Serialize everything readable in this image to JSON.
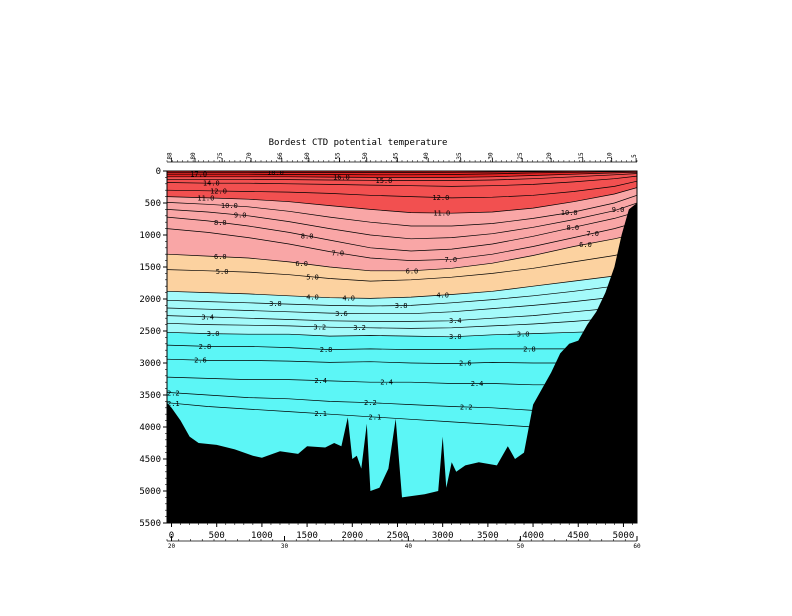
{
  "chart_data": {
    "type": "heatmap",
    "title": "Bordest CTD potential temperature",
    "xlim": [
      -50,
      5150
    ],
    "ylim": [
      5500,
      0
    ],
    "x_ticks": [
      0,
      500,
      1000,
      1500,
      2000,
      2500,
      3000,
      3500,
      4000,
      4500,
      5000
    ],
    "y_ticks": [
      0,
      500,
      1000,
      1500,
      2000,
      2500,
      3000,
      3500,
      4000,
      4500,
      5000,
      5500
    ],
    "lat_ticks": [
      {
        "x": 0,
        "label": "20"
      },
      {
        "x": 1250,
        "label": "30"
      },
      {
        "x": 2620,
        "label": "40"
      },
      {
        "x": 3860,
        "label": "50"
      },
      {
        "x": 5150,
        "label": "60"
      }
    ],
    "stations": [
      {
        "x": 0,
        "label": "88"
      },
      {
        "x": 260,
        "label": "80"
      },
      {
        "x": 560,
        "label": "75"
      },
      {
        "x": 880,
        "label": "70"
      },
      {
        "x": 1220,
        "label": "66"
      },
      {
        "x": 1520,
        "label": "60"
      },
      {
        "x": 1860,
        "label": "55"
      },
      {
        "x": 2160,
        "label": "50"
      },
      {
        "x": 2500,
        "label": "45"
      },
      {
        "x": 2840,
        "label": "40"
      },
      {
        "x": 3200,
        "label": "35"
      },
      {
        "x": 3550,
        "label": "30"
      },
      {
        "x": 3880,
        "label": "25"
      },
      {
        "x": 4200,
        "label": "20"
      },
      {
        "x": 4550,
        "label": "15"
      },
      {
        "x": 4870,
        "label": "10"
      },
      {
        "x": 5140,
        "label": "5"
      }
    ],
    "color_bands": [
      {
        "min": 11.0,
        "color": "#f25050"
      },
      {
        "min": 6.0,
        "color": "#f9a6a6"
      },
      {
        "min": 4.0,
        "color": "#fcd2a0"
      },
      {
        "min": 3.0,
        "color": "#a4fafa"
      },
      {
        "min": 0.0,
        "color": "#5cf6f6"
      }
    ],
    "surface_color": "#e52222",
    "bottom_color": "#000000",
    "contour_levels": [
      {
        "value": 2.1,
        "depth": [
          3620,
          3680,
          3720,
          3760,
          3800,
          3840,
          3880,
          3920,
          3960,
          4000,
          4030,
          4060,
          4050
        ],
        "labels": [
          {
            "x": 20,
            "text": "2.1"
          },
          {
            "x": 1650,
            "text": "2.1"
          },
          {
            "x": 2250,
            "text": "2.1"
          }
        ]
      },
      {
        "value": 2.2,
        "depth": [
          3460,
          3500,
          3540,
          3560,
          3600,
          3620,
          3650,
          3680,
          3700,
          3740,
          3780,
          3800,
          3790
        ],
        "labels": [
          {
            "x": 20,
            "text": "2.2"
          },
          {
            "x": 2200,
            "text": "2.2"
          },
          {
            "x": 3260,
            "text": "2.2"
          }
        ]
      },
      {
        "value": 2.4,
        "depth": [
          3220,
          3240,
          3260,
          3260,
          3280,
          3300,
          3300,
          3320,
          3320,
          3340,
          3340,
          3320,
          3300
        ],
        "labels": [
          {
            "x": -20,
            "text": "2.4"
          },
          {
            "x": 1650,
            "text": "2.4"
          },
          {
            "x": 2380,
            "text": "2.4"
          },
          {
            "x": 3380,
            "text": "2.4"
          }
        ]
      },
      {
        "value": 2.6,
        "depth": [
          2940,
          2960,
          2960,
          2970,
          2990,
          2980,
          3000,
          3010,
          2990,
          3000,
          3000,
          2980,
          2950
        ],
        "labels": [
          {
            "x": 320,
            "text": "2.6"
          },
          {
            "x": 3250,
            "text": "2.6"
          }
        ]
      },
      {
        "value": 2.8,
        "depth": [
          2720,
          2740,
          2740,
          2760,
          2790,
          2780,
          2790,
          2790,
          2780,
          2780,
          2780,
          2760,
          2740
        ],
        "labels": [
          {
            "x": 370,
            "text": "2.8"
          },
          {
            "x": 1710,
            "text": "2.8"
          },
          {
            "x": 3960,
            "text": "2.8"
          }
        ]
      },
      {
        "value": 3.0,
        "depth": [
          2520,
          2540,
          2550,
          2550,
          2580,
          2570,
          2580,
          2590,
          2560,
          2540,
          2520,
          2500,
          2470
        ],
        "labels": [
          {
            "x": 460,
            "text": "3.0"
          },
          {
            "x": 3140,
            "text": "3.0"
          },
          {
            "x": 3890,
            "text": "3.0"
          }
        ]
      },
      {
        "value": 3.2,
        "depth": [
          2380,
          2400,
          2410,
          2420,
          2440,
          2450,
          2460,
          2450,
          2420,
          2390,
          2350,
          2300,
          2250
        ],
        "labels": [
          {
            "x": 1640,
            "text": "3.2"
          },
          {
            "x": 2080,
            "text": "3.2"
          }
        ]
      },
      {
        "value": 3.4,
        "depth": [
          2260,
          2280,
          2300,
          2320,
          2340,
          2350,
          2350,
          2340,
          2300,
          2260,
          2200,
          2140,
          2080
        ],
        "labels": [
          {
            "x": 400,
            "text": "3.4"
          },
          {
            "x": 3140,
            "text": "3.4"
          }
        ]
      },
      {
        "value": 3.6,
        "depth": [
          2140,
          2160,
          2180,
          2200,
          2220,
          2230,
          2230,
          2200,
          2150,
          2100,
          2040,
          1970,
          1900
        ],
        "labels": [
          {
            "x": 1880,
            "text": "3.6"
          }
        ]
      },
      {
        "value": 3.8,
        "depth": [
          2020,
          2040,
          2060,
          2080,
          2100,
          2110,
          2100,
          2060,
          2010,
          1950,
          1880,
          1800,
          1720
        ],
        "labels": [
          {
            "x": 1150,
            "text": "3.8"
          },
          {
            "x": 2540,
            "text": "3.8"
          }
        ]
      },
      {
        "value": 4.0,
        "depth": [
          1880,
          1900,
          1920,
          1950,
          1980,
          1990,
          1970,
          1930,
          1880,
          1800,
          1720,
          1640,
          1560
        ],
        "labels": [
          {
            "x": 1560,
            "text": "4.0"
          },
          {
            "x": 1960,
            "text": "4.0"
          },
          {
            "x": 3000,
            "text": "4.0"
          }
        ]
      },
      {
        "value": 5.0,
        "depth": [
          1540,
          1560,
          1580,
          1620,
          1680,
          1720,
          1700,
          1660,
          1600,
          1520,
          1420,
          1320,
          1240
        ],
        "labels": [
          {
            "x": 560,
            "text": "5.0"
          },
          {
            "x": 1560,
            "text": "5.0"
          }
        ]
      },
      {
        "value": 6.0,
        "depth": [
          1300,
          1330,
          1360,
          1420,
          1500,
          1560,
          1560,
          1520,
          1440,
          1320,
          1180,
          1060,
          980
        ],
        "labels": [
          {
            "x": 540,
            "text": "6.0"
          },
          {
            "x": 1440,
            "text": "6.0"
          },
          {
            "x": 2660,
            "text": "6.0"
          },
          {
            "x": 4580,
            "text": "6.0"
          }
        ]
      },
      {
        "value": 7.0,
        "depth": [
          900,
          960,
          1040,
          1140,
          1260,
          1360,
          1400,
          1380,
          1300,
          1180,
          1040,
          900,
          800
        ],
        "labels": [
          {
            "x": -20,
            "text": "7.0"
          },
          {
            "x": 1840,
            "text": "7.0"
          },
          {
            "x": 3090,
            "text": "7.0"
          },
          {
            "x": 4660,
            "text": "7.0"
          }
        ]
      },
      {
        "value": 8.0,
        "depth": [
          720,
          780,
          860,
          960,
          1080,
          1200,
          1250,
          1220,
          1140,
          1020,
          880,
          740,
          640
        ],
        "labels": [
          {
            "x": 540,
            "text": "8.0"
          },
          {
            "x": 1500,
            "text": "8.0"
          },
          {
            "x": 4440,
            "text": "8.0"
          }
        ]
      },
      {
        "value": 9.0,
        "depth": [
          600,
          640,
          700,
          790,
          900,
          1000,
          1060,
          1040,
          980,
          880,
          760,
          620,
          500
        ],
        "labels": [
          {
            "x": 760,
            "text": "9.0"
          },
          {
            "x": 4940,
            "text": "9.0"
          }
        ]
      },
      {
        "value": 10.0,
        "depth": [
          490,
          520,
          560,
          630,
          720,
          800,
          860,
          860,
          820,
          740,
          640,
          500,
          380
        ],
        "labels": [
          {
            "x": 640,
            "text": "10.0"
          },
          {
            "x": 4400,
            "text": "10.0"
          }
        ]
      },
      {
        "value": 11.0,
        "depth": [
          400,
          420,
          440,
          480,
          540,
          600,
          650,
          660,
          640,
          580,
          480,
          360,
          260
        ],
        "labels": [
          {
            "x": 380,
            "text": "11.0"
          },
          {
            "x": 2990,
            "text": "11.0"
          }
        ]
      },
      {
        "value": 12.0,
        "depth": [
          300,
          310,
          320,
          330,
          350,
          380,
          400,
          420,
          410,
          380,
          320,
          240,
          160
        ],
        "labels": [
          {
            "x": 520,
            "text": "12.0"
          },
          {
            "x": 2980,
            "text": "12.0"
          }
        ]
      },
      {
        "value": 14.0,
        "depth": [
          180,
          190,
          190,
          200,
          210,
          220,
          230,
          240,
          230,
          210,
          170,
          120,
          80
        ],
        "labels": [
          {
            "x": 440,
            "text": "14.0"
          }
        ]
      },
      {
        "value": 15.0,
        "depth": [
          130,
          130,
          130,
          135,
          140,
          145,
          150,
          150,
          140,
          120,
          90,
          60,
          40
        ],
        "labels": [
          {
            "x": 2350,
            "text": "15.0"
          }
        ]
      },
      {
        "value": 16.0,
        "depth": [
          90,
          90,
          90,
          90,
          95,
          100,
          100,
          100,
          90,
          70,
          50,
          30,
          20
        ],
        "labels": [
          {
            "x": 1880,
            "text": "16.0"
          }
        ]
      },
      {
        "value": 17.0,
        "depth": [
          50,
          50,
          50,
          55,
          55,
          60,
          60,
          55,
          45,
          30,
          20,
          10,
          5
        ],
        "labels": [
          {
            "x": 300,
            "text": "17.0"
          }
        ]
      },
      {
        "value": 18.0,
        "depth": [
          20,
          20,
          20,
          25,
          25,
          25,
          25,
          20,
          15,
          10,
          5,
          0,
          0
        ],
        "labels": [
          {
            "x": 1150,
            "text": "18.0"
          }
        ]
      }
    ],
    "contour_x": [
      -50,
      400,
      850,
      1300,
      1750,
      2200,
      2650,
      3100,
      3550,
      4000,
      4450,
      4900,
      5150
    ],
    "bottom_profile": [
      {
        "x": -50,
        "y": 3620
      },
      {
        "x": 0,
        "y": 3700
      },
      {
        "x": 100,
        "y": 3900
      },
      {
        "x": 200,
        "y": 4150
      },
      {
        "x": 300,
        "y": 4250
      },
      {
        "x": 500,
        "y": 4280
      },
      {
        "x": 700,
        "y": 4350
      },
      {
        "x": 900,
        "y": 4450
      },
      {
        "x": 1000,
        "y": 4480
      },
      {
        "x": 1200,
        "y": 4380
      },
      {
        "x": 1400,
        "y": 4420
      },
      {
        "x": 1500,
        "y": 4300
      },
      {
        "x": 1700,
        "y": 4320
      },
      {
        "x": 1800,
        "y": 4250
      },
      {
        "x": 1880,
        "y": 4300
      },
      {
        "x": 1950,
        "y": 3850
      },
      {
        "x": 2000,
        "y": 4500
      },
      {
        "x": 2050,
        "y": 4450
      },
      {
        "x": 2100,
        "y": 4650
      },
      {
        "x": 2160,
        "y": 3950
      },
      {
        "x": 2200,
        "y": 5000
      },
      {
        "x": 2300,
        "y": 4950
      },
      {
        "x": 2400,
        "y": 4650
      },
      {
        "x": 2480,
        "y": 3870
      },
      {
        "x": 2550,
        "y": 5100
      },
      {
        "x": 2650,
        "y": 5080
      },
      {
        "x": 2800,
        "y": 5050
      },
      {
        "x": 2950,
        "y": 5000
      },
      {
        "x": 3000,
        "y": 4150
      },
      {
        "x": 3040,
        "y": 4950
      },
      {
        "x": 3100,
        "y": 4550
      },
      {
        "x": 3150,
        "y": 4700
      },
      {
        "x": 3250,
        "y": 4600
      },
      {
        "x": 3400,
        "y": 4550
      },
      {
        "x": 3600,
        "y": 4600
      },
      {
        "x": 3720,
        "y": 4300
      },
      {
        "x": 3800,
        "y": 4500
      },
      {
        "x": 3900,
        "y": 4400
      },
      {
        "x": 4000,
        "y": 3650
      },
      {
        "x": 4100,
        "y": 3400
      },
      {
        "x": 4200,
        "y": 3150
      },
      {
        "x": 4300,
        "y": 2850
      },
      {
        "x": 4400,
        "y": 2700
      },
      {
        "x": 4500,
        "y": 2650
      },
      {
        "x": 4600,
        "y": 2400
      },
      {
        "x": 4700,
        "y": 2200
      },
      {
        "x": 4800,
        "y": 1900
      },
      {
        "x": 4900,
        "y": 1500
      },
      {
        "x": 4980,
        "y": 1000
      },
      {
        "x": 5060,
        "y": 600
      },
      {
        "x": 5150,
        "y": 500
      }
    ],
    "blue_patch": {
      "x": 5110,
      "y0": 820,
      "y1": 1080,
      "color": "#1e90ff"
    }
  }
}
